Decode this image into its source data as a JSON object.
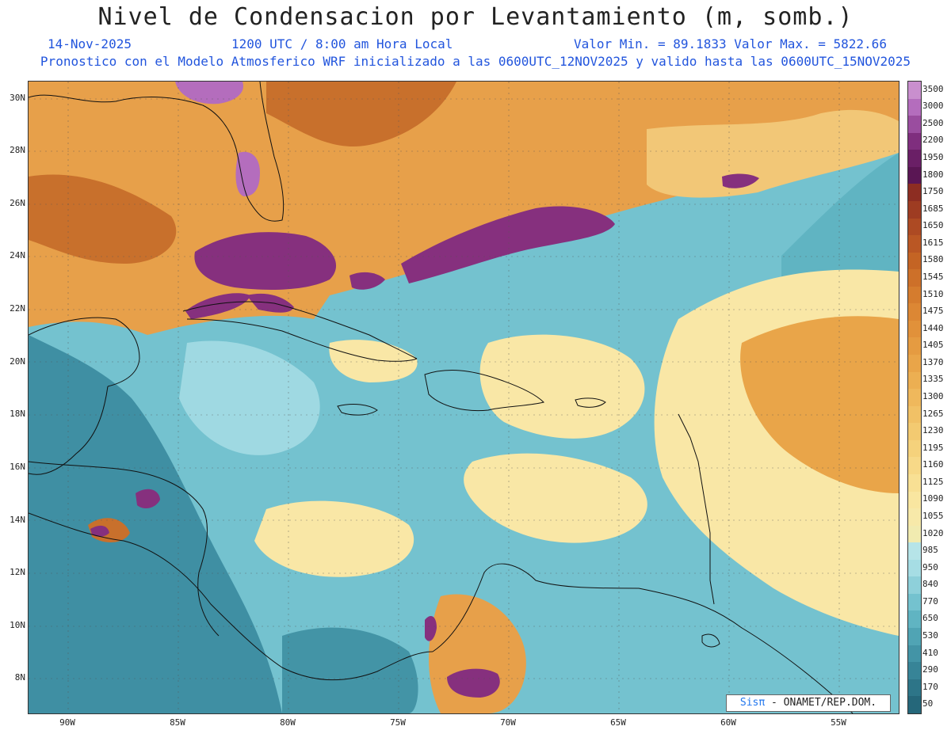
{
  "title": "Nivel de Condensacion por Levantamiento (m, somb.)",
  "subtitle": {
    "date": "14-Nov-2025",
    "time": "1200 UTC / 8:00 am Hora Local",
    "minmax": "Valor Min. = 89.1833  Valor Max. = 5822.66",
    "forecast": "Pronostico con el Modelo Atmosferico WRF inicializado a las 0600UTC_12NOV2025 y valido hasta las  0600UTC_15NOV2025"
  },
  "map": {
    "lat_labels": [
      "30N",
      "28N",
      "26N",
      "24N",
      "22N",
      "20N",
      "18N",
      "16N",
      "14N",
      "12N",
      "10N",
      "8N"
    ],
    "lon_labels": [
      "90W",
      "85W",
      "80W",
      "75W",
      "70W",
      "65W",
      "60W",
      "55W"
    ]
  },
  "colorbar": {
    "labels": [
      "3500",
      "3000",
      "2500",
      "2200",
      "1950",
      "1800",
      "1750",
      "1685",
      "1650",
      "1615",
      "1580",
      "1545",
      "1510",
      "1475",
      "1440",
      "1405",
      "1370",
      "1335",
      "1300",
      "1265",
      "1230",
      "1195",
      "1160",
      "1125",
      "1090",
      "1055",
      "1020",
      "985",
      "950",
      "840",
      "770",
      "650",
      "530",
      "410",
      "290",
      "170",
      "50"
    ],
    "colors": [
      "#c98fce",
      "#b46dbd",
      "#9a4d9f",
      "#7f2e7e",
      "#6a1f66",
      "#5a1654",
      "#8d2d22",
      "#9e3c22",
      "#ad4a23",
      "#ba5724",
      "#c46424",
      "#cd7029",
      "#d57c2e",
      "#dc8734",
      "#e1913a",
      "#e59b41",
      "#e9a549",
      "#ecaf52",
      "#efb85c",
      "#f1c166",
      "#f3ca71",
      "#f5d27c",
      "#f7d988",
      "#f8e094",
      "#f9e6a0",
      "#f7e9a9",
      "#f1ebb0",
      "#b6e4e8",
      "#a6dde4",
      "#8ed0da",
      "#74c2cf",
      "#60b4c2",
      "#50a4b4",
      "#4394a6",
      "#378497",
      "#2d7588",
      "#25677a"
    ]
  },
  "credit": {
    "prefix": "Sis",
    "pi": "π",
    "suffix": "- ONAMET/REP.DOM."
  },
  "palette": {
    "teal": "#74c2cf",
    "teal_dark": "#3f8fa3",
    "teal_light": "#9fd9e2",
    "yellow": "#f9e7a6",
    "orange": "#e7a04a",
    "orange_dark": "#c8702c",
    "purple": "#86307e",
    "purple_light": "#b46dbd"
  }
}
